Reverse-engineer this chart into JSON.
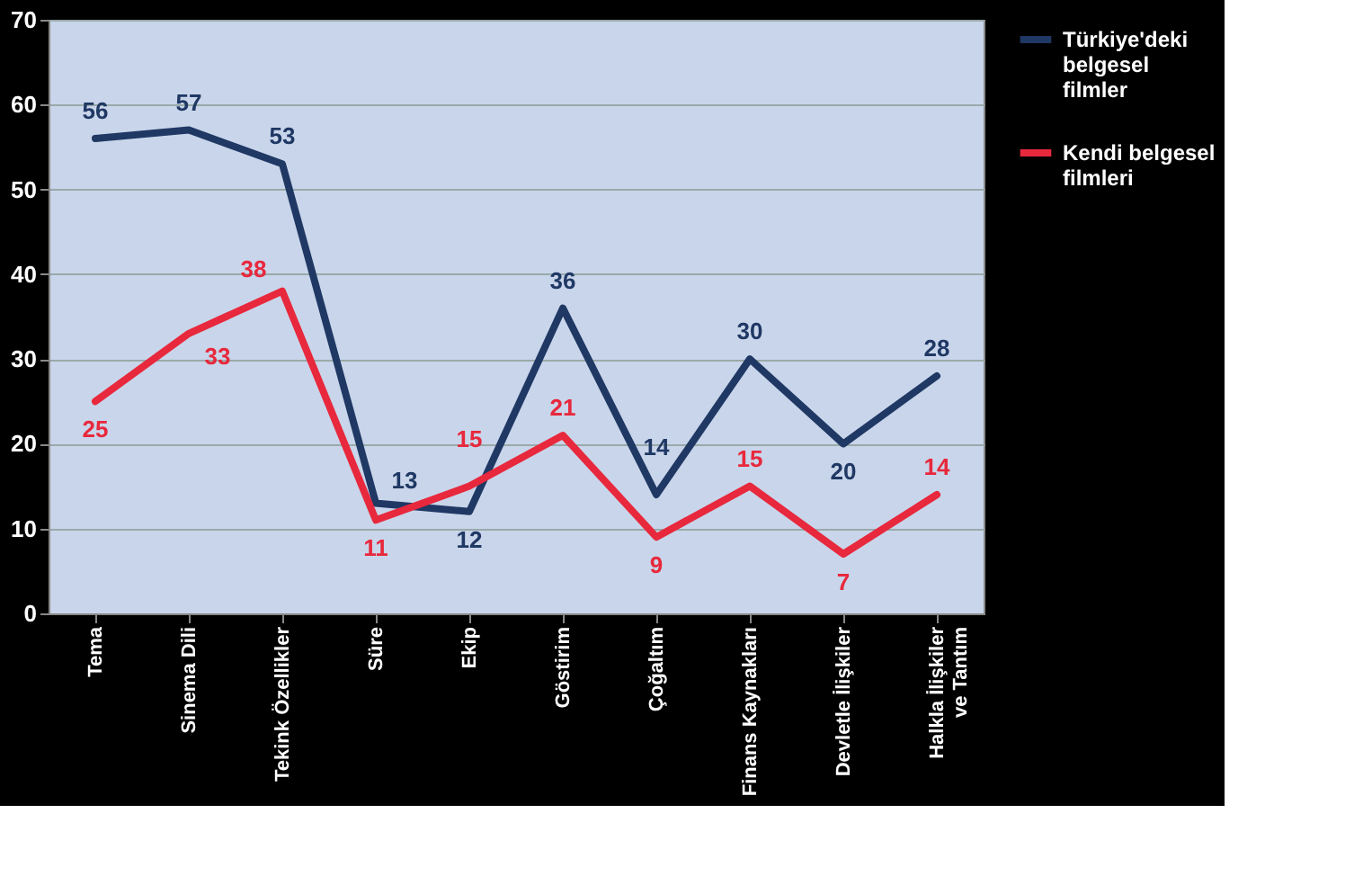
{
  "chart_data": {
    "type": "line",
    "categories": [
      "Tema",
      "Sinema Dili",
      "Tekink Özellikler",
      "Süre",
      "Ekip",
      "Göstirim",
      "Çoğaltım",
      "Finans Kaynakları",
      "Devletle İlişkiler",
      "Halkla İlişkiler ve Tantım"
    ],
    "series": [
      {
        "name": "Türkiye'deki belgesel filmler",
        "color": "#1f3864",
        "values": [
          56,
          57,
          53,
          13,
          12,
          36,
          14,
          30,
          20,
          28
        ]
      },
      {
        "name": "Kendi belgesel filmleri",
        "color": "#e8283c",
        "values": [
          25,
          33,
          38,
          11,
          15,
          21,
          9,
          15,
          7,
          14
        ]
      }
    ],
    "ylim": [
      0,
      70
    ],
    "yticks": [
      0,
      10,
      20,
      30,
      40,
      50,
      60,
      70
    ],
    "grid": "y",
    "legend": "right",
    "data_labels": true,
    "marker": "none",
    "line_style": "solid"
  }
}
